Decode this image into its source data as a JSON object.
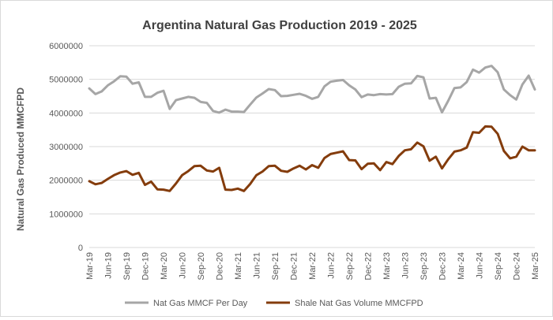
{
  "chart_data": {
    "type": "line",
    "title": "Argentina Natural Gas Production 2019 - 2025",
    "xlabel": "",
    "ylabel": "Natural Gas Produced MMCFPD",
    "ylim": [
      0,
      6000000
    ],
    "yticks": [
      "0",
      "1000000",
      "2000000",
      "3000000",
      "4000000",
      "5000000",
      "6000000"
    ],
    "grid": true,
    "legend_position": "bottom",
    "x": [
      "Mar-19",
      "Apr-19",
      "May-19",
      "Jun-19",
      "Jul-19",
      "Aug-19",
      "Sep-19",
      "Oct-19",
      "Nov-19",
      "Dec-19",
      "Jan-20",
      "Feb-20",
      "Mar-20",
      "Apr-20",
      "May-20",
      "Jun-20",
      "Jul-20",
      "Aug-20",
      "Sep-20",
      "Oct-20",
      "Nov-20",
      "Dec-20",
      "Jan-21",
      "Feb-21",
      "Mar-21",
      "Apr-21",
      "May-21",
      "Jun-21",
      "Jul-21",
      "Aug-21",
      "Sep-21",
      "Oct-21",
      "Nov-21",
      "Dec-21",
      "Jan-22",
      "Feb-22",
      "Mar-22",
      "Apr-22",
      "May-22",
      "Jun-22",
      "Jul-22",
      "Aug-22",
      "Sep-22",
      "Oct-22",
      "Nov-22",
      "Dec-22",
      "Jan-23",
      "Feb-23",
      "Mar-23",
      "Apr-23",
      "May-23",
      "Jun-23",
      "Jul-23",
      "Aug-23",
      "Sep-23",
      "Oct-23",
      "Nov-23",
      "Dec-23",
      "Jan-24",
      "Feb-24",
      "Mar-24",
      "Apr-24",
      "May-24",
      "Jun-24",
      "Jul-24",
      "Aug-24",
      "Sep-24",
      "Oct-24",
      "Nov-24",
      "Dec-24",
      "Jan-25",
      "Feb-25",
      "Mar-25"
    ],
    "x_tick_labels": [
      "Mar-19",
      "Jun-19",
      "Sep-19",
      "Dec-19",
      "Mar-20",
      "Jun-20",
      "Sep-20",
      "Dec-20",
      "Mar-21",
      "Jun-21",
      "Sep-21",
      "Dec-21",
      "Mar-22",
      "Jun-22",
      "Sep-22",
      "Dec-22",
      "Mar-23",
      "Jun-23",
      "Sep-23",
      "Dec-23",
      "Mar-24",
      "Jun-24",
      "Sep-24",
      "Dec-24",
      "Mar-25"
    ],
    "series": [
      {
        "name": "Nat Gas MMCF Per Day",
        "color": "#a6a6a6",
        "values": [
          4730000,
          4560000,
          4640000,
          4820000,
          4940000,
          5090000,
          5080000,
          4870000,
          4910000,
          4480000,
          4480000,
          4600000,
          4660000,
          4120000,
          4380000,
          4430000,
          4480000,
          4450000,
          4330000,
          4300000,
          4060000,
          4010000,
          4100000,
          4040000,
          4040000,
          4030000,
          4250000,
          4460000,
          4580000,
          4710000,
          4680000,
          4500000,
          4510000,
          4540000,
          4570000,
          4510000,
          4420000,
          4480000,
          4790000,
          4930000,
          4960000,
          4980000,
          4820000,
          4700000,
          4470000,
          4550000,
          4530000,
          4560000,
          4550000,
          4560000,
          4780000,
          4870000,
          4880000,
          5100000,
          5060000,
          4430000,
          4450000,
          4020000,
          4360000,
          4740000,
          4760000,
          4920000,
          5290000,
          5200000,
          5350000,
          5400000,
          5210000,
          4700000,
          4530000,
          4400000,
          4850000,
          5110000,
          4700000
        ]
      },
      {
        "name": "Shale Nat Gas Volume MMCFPD",
        "color": "#843c0c",
        "values": [
          1970000,
          1880000,
          1920000,
          2040000,
          2150000,
          2230000,
          2270000,
          2160000,
          2220000,
          1860000,
          1960000,
          1730000,
          1720000,
          1680000,
          1900000,
          2150000,
          2270000,
          2420000,
          2430000,
          2290000,
          2260000,
          2370000,
          1720000,
          1710000,
          1750000,
          1680000,
          1890000,
          2150000,
          2260000,
          2420000,
          2430000,
          2280000,
          2250000,
          2350000,
          2430000,
          2320000,
          2450000,
          2370000,
          2660000,
          2780000,
          2820000,
          2860000,
          2600000,
          2590000,
          2330000,
          2490000,
          2500000,
          2300000,
          2540000,
          2480000,
          2720000,
          2890000,
          2920000,
          3120000,
          3010000,
          2580000,
          2700000,
          2350000,
          2620000,
          2850000,
          2890000,
          2970000,
          3430000,
          3410000,
          3600000,
          3590000,
          3380000,
          2870000,
          2650000,
          2700000,
          3000000,
          2890000,
          2890000
        ]
      }
    ]
  }
}
